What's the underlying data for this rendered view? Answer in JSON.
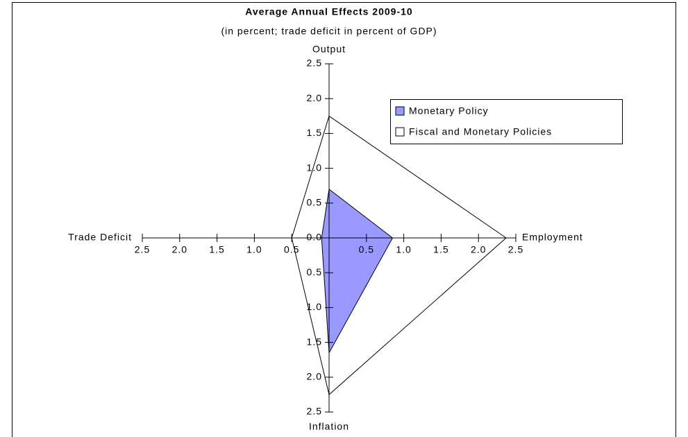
{
  "chart_data": {
    "type": "radar",
    "title": "Average Annual Effects 2009-10",
    "subtitle": "(in percent; trade deficit in percent of GDP)",
    "axes": [
      "Output",
      "Employment",
      "Inflation",
      "Trade Deficit"
    ],
    "rlim": [
      0,
      2.5
    ],
    "rticks": [
      {
        "value": 0,
        "label": "0.0"
      },
      0.5,
      {
        "value": 1,
        "label": "1.0"
      },
      1.5,
      {
        "value": 2,
        "label": "2.0"
      },
      2.5
    ],
    "series": [
      {
        "name": "Monetary Policy",
        "color": "#9999ff",
        "values": [
          0.7,
          0.85,
          1.65,
          0.1
        ]
      },
      {
        "name": "Fiscal and Monetary Policies",
        "color": "#ffffff",
        "values": [
          1.75,
          2.37,
          2.25,
          0.5
        ]
      }
    ],
    "legend": "upper right"
  }
}
